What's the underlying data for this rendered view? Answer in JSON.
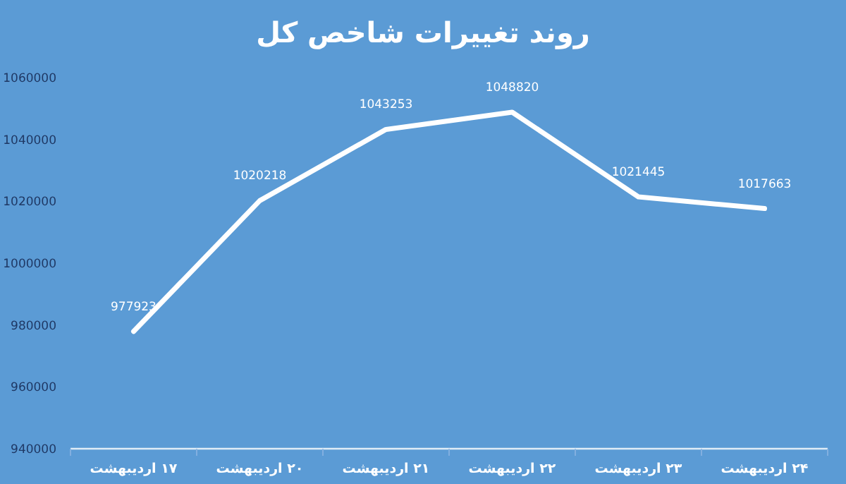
{
  "chart_data": {
    "type": "line",
    "title": "روند تغییرات شاخص کل",
    "categories": [
      "۱۷ اردیبهشت",
      "۲۰ اردیبهشت",
      "۲۱ اردیبهشت",
      "۲۲ اردیبهشت",
      "۲۳ اردیبهشت",
      "۲۴ اردیبهشت"
    ],
    "series": [
      {
        "color": "#ffffff",
        "values": [
          977923,
          1020218,
          1043253,
          1048820,
          1021445,
          1017663
        ]
      }
    ],
    "ylim": [
      940000,
      1060000
    ],
    "yticks": [
      940000,
      960000,
      980000,
      1000000,
      1020000,
      1040000,
      1060000
    ],
    "data_labels": true,
    "grid": false,
    "marker": "none",
    "line_style": "solid"
  }
}
